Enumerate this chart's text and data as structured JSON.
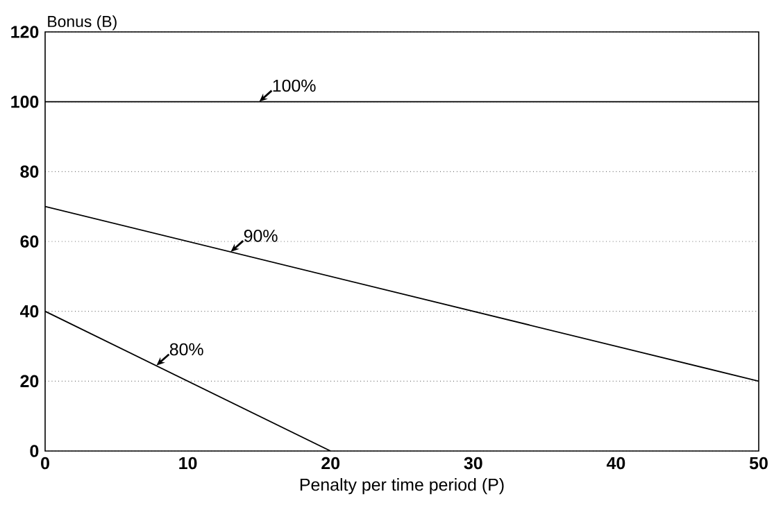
{
  "chart_data": {
    "type": "line",
    "xlabel": "Penalty per time period (P)",
    "ylabel": "Bonus (B)",
    "xlim": [
      0,
      50
    ],
    "xticks": [
      0,
      10,
      20,
      30,
      40,
      50
    ],
    "ylim": [
      0,
      120
    ],
    "yticks": [
      0,
      20,
      40,
      60,
      80,
      100,
      120
    ],
    "grid": "y",
    "line_style": "solid",
    "marker": "none",
    "series": [
      {
        "color": "#000000",
        "x": [
          0,
          50
        ],
        "values": [
          100,
          100
        ]
      },
      {
        "color": "#000000",
        "x": [
          0,
          50
        ],
        "values": [
          70,
          20
        ]
      },
      {
        "color": "#000000",
        "x": [
          0,
          20
        ],
        "values": [
          40,
          0
        ]
      }
    ],
    "annotations": [
      {
        "text": "100%",
        "x": 15,
        "y": 100
      },
      {
        "text": "90%",
        "x": 13,
        "y": 57
      },
      {
        "text": "80%",
        "x": 7.8,
        "y": 24.5
      }
    ]
  }
}
